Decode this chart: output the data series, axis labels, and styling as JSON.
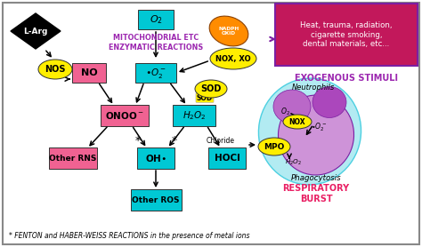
{
  "bg_color": "#ffffff",
  "border_color": "#999999",
  "cyan_color": "#00c8d4",
  "pink_color": "#f06292",
  "yellow_color": "#ffee00",
  "purple_text": "#9c27b0",
  "magenta_text": "#e91e63",
  "orange_blob": "#ff8c00",
  "arrow_color": "#111111",
  "exo_box_bg": "#c2185b",
  "exo_text": "Heat, trauma, radiation,\ncigarette smoking,\ndental materials, etc...",
  "exo_label": "EXOGENOUS STIMULI",
  "mit_line1": "MITOCHONDRIAL ETC",
  "mit_line2": "ENZYMATIC REACTIONS",
  "resp_burst": "RESPIRATORY\nBURST",
  "phago": "Phagocytosis",
  "footnote": "* FENTON and HABER-WEISS REACTIONS in the presence of metal ions"
}
